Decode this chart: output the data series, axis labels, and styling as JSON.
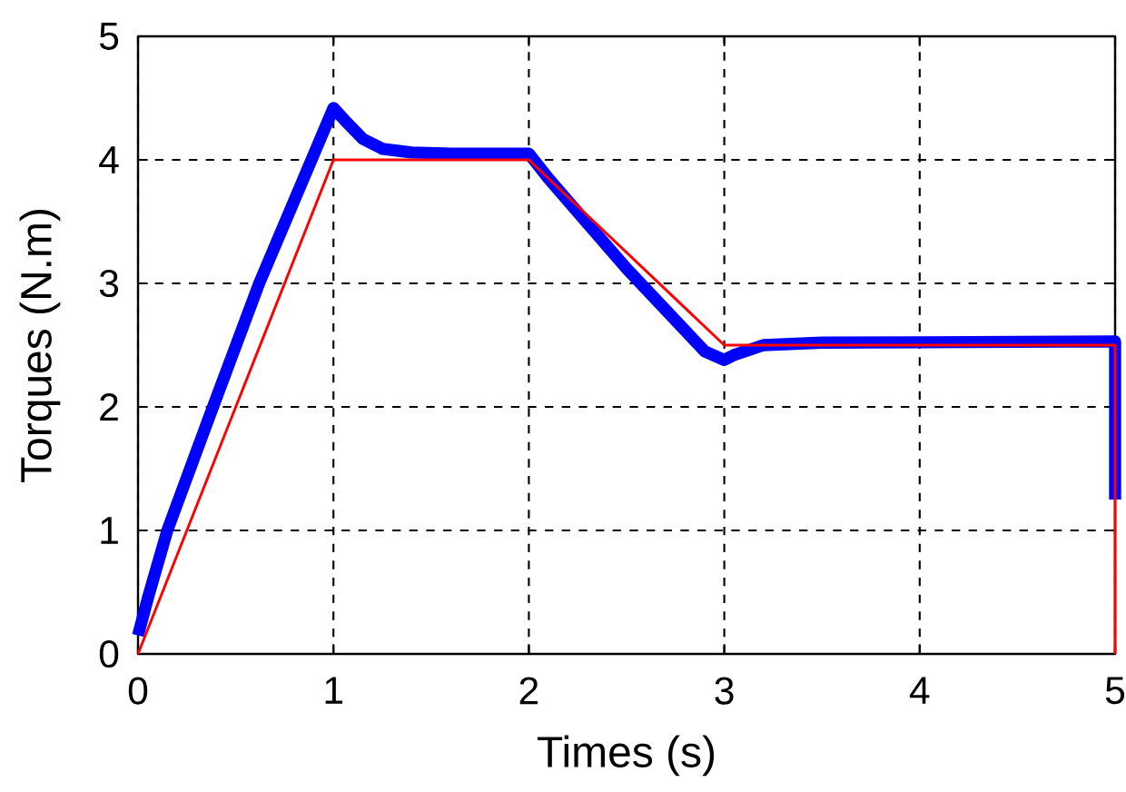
{
  "chart_data": {
    "type": "line",
    "xlabel": "Times (s)",
    "ylabel": "Torques (N.m)",
    "series": [
      {
        "color": "#0000ff",
        "x": [
          0,
          0.05,
          0.15,
          0.36,
          0.62,
          1.0,
          1.07,
          1.15,
          1.25,
          1.4,
          1.6,
          2.0,
          2.1,
          2.5,
          2.9,
          3.0,
          3.05,
          3.2,
          3.5,
          5.0,
          5.0
        ],
        "values": [
          0.15,
          0.45,
          1.0,
          1.9,
          3.0,
          4.42,
          4.3,
          4.17,
          4.09,
          4.06,
          4.05,
          4.05,
          3.85,
          3.12,
          2.45,
          2.38,
          2.42,
          2.5,
          2.52,
          2.53,
          1.25
        ]
      },
      {
        "color": "#ff0000",
        "x": [
          0,
          1,
          2,
          3,
          5,
          5
        ],
        "values": [
          0,
          4,
          4,
          2.5,
          2.5,
          0
        ]
      }
    ],
    "xlim": [
      0,
      5
    ],
    "ylim": [
      0,
      5
    ],
    "xticks": [
      0,
      1,
      2,
      3,
      4,
      5
    ],
    "yticks": [
      0,
      1,
      2,
      3,
      4,
      5
    ],
    "grid": true,
    "marker": "none",
    "line_style": "solid"
  }
}
